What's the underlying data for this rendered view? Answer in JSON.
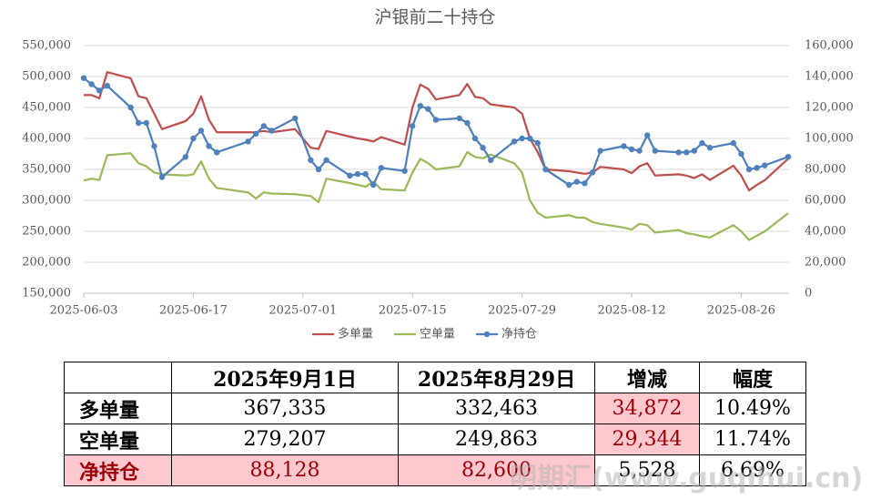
{
  "chart_data": {
    "type": "line",
    "title": "沪银前二十持仓",
    "x": [
      "2025-06-03",
      "2025-06-04",
      "2025-06-05",
      "2025-06-06",
      "2025-06-09",
      "2025-06-10",
      "2025-06-11",
      "2025-06-12",
      "2025-06-13",
      "2025-06-16",
      "2025-06-17",
      "2025-06-18",
      "2025-06-19",
      "2025-06-20",
      "2025-06-24",
      "2025-06-25",
      "2025-06-26",
      "2025-06-27",
      "2025-06-30",
      "2025-07-02",
      "2025-07-03",
      "2025-07-04",
      "2025-07-07",
      "2025-07-08",
      "2025-07-09",
      "2025-07-10",
      "2025-07-11",
      "2025-07-14",
      "2025-07-15",
      "2025-07-16",
      "2025-07-17",
      "2025-07-18",
      "2025-07-21",
      "2025-07-22",
      "2025-07-23",
      "2025-07-24",
      "2025-07-25",
      "2025-07-28",
      "2025-07-29",
      "2025-07-30",
      "2025-07-31",
      "2025-08-01",
      "2025-08-04",
      "2025-08-05",
      "2025-08-06",
      "2025-08-07",
      "2025-08-08",
      "2025-08-11",
      "2025-08-12",
      "2025-08-13",
      "2025-08-14",
      "2025-08-15",
      "2025-08-18",
      "2025-08-19",
      "2025-08-20",
      "2025-08-21",
      "2025-08-22",
      "2025-08-25",
      "2025-08-26",
      "2025-08-27",
      "2025-08-28",
      "2025-08-29",
      "2025-09-01"
    ],
    "series": [
      {
        "name": "多单量",
        "color": "#c0504d",
        "values": [
          470000,
          470000,
          465000,
          507000,
          497000,
          468000,
          465000,
          440000,
          415000,
          428000,
          440000,
          468000,
          430000,
          410000,
          410000,
          410000,
          412000,
          410000,
          415000,
          385000,
          383000,
          412000,
          403000,
          400000,
          398000,
          395000,
          402000,
          390000,
          450000,
          487000,
          480000,
          463000,
          470000,
          488000,
          467000,
          465000,
          455000,
          450000,
          440000,
          400000,
          378000,
          350000,
          347000,
          345000,
          343000,
          345000,
          354000,
          350000,
          344000,
          355000,
          360000,
          340000,
          342000,
          340000,
          336000,
          342000,
          333000,
          356000,
          340000,
          316000,
          325000,
          332463,
          367335
        ]
      },
      {
        "name": "空单量",
        "color": "#9bbb59",
        "values": [
          332000,
          335000,
          333000,
          373000,
          376000,
          360000,
          355000,
          345000,
          342000,
          340000,
          342000,
          363000,
          335000,
          320000,
          313000,
          303000,
          313000,
          311000,
          310000,
          307000,
          297000,
          335000,
          328000,
          325000,
          322000,
          330000,
          318000,
          316000,
          345000,
          367000,
          360000,
          350000,
          355000,
          378000,
          370000,
          368000,
          374000,
          360000,
          345000,
          300000,
          280000,
          272000,
          276000,
          272000,
          272000,
          265000,
          262000,
          256000,
          253000,
          262000,
          260000,
          248000,
          252000,
          247000,
          245000,
          242000,
          240000,
          260000,
          250000,
          236000,
          243000,
          249863,
          279207
        ]
      },
      {
        "name": "净持仓",
        "color": "#4f81bd",
        "axis": "y2",
        "marker": true,
        "values": [
          139000,
          135000,
          131000,
          134000,
          120000,
          110000,
          110000,
          95000,
          75000,
          88000,
          100000,
          105000,
          95000,
          91000,
          98000,
          103000,
          108000,
          105000,
          113000,
          86000,
          80000,
          86000,
          76000,
          77000,
          77000,
          70000,
          81000,
          79000,
          108000,
          121000,
          119000,
          112000,
          113000,
          110000,
          100000,
          94000,
          86000,
          98000,
          100000,
          100000,
          97000,
          80000,
          70000,
          72000,
          71000,
          78000,
          92000,
          95000,
          93000,
          92000,
          102000,
          92000,
          91000,
          91000,
          92000,
          97000,
          94000,
          97000,
          90000,
          80000,
          81000,
          82600,
          88128
        ]
      }
    ],
    "xlim": [
      "2025-06-03",
      "2025-09-01"
    ],
    "xticks": [
      "2025-06-03",
      "2025-06-17",
      "2025-07-01",
      "2025-07-15",
      "2025-07-29",
      "2025-08-12",
      "2025-08-26"
    ],
    "ylim": [
      150000,
      550000
    ],
    "yticks": [
      {
        "value": 150000,
        "label": "150,000"
      },
      {
        "value": 200000,
        "label": "200,000"
      },
      {
        "value": 250000,
        "label": "250,000"
      },
      {
        "value": 300000,
        "label": "300,000"
      },
      {
        "value": 350000,
        "label": "350,000"
      },
      {
        "value": 400000,
        "label": "400,000"
      },
      {
        "value": 450000,
        "label": "450,000"
      },
      {
        "value": 500000,
        "label": "500,000"
      },
      {
        "value": 550000,
        "label": "550,000"
      }
    ],
    "y2lim": [
      0,
      160000
    ],
    "y2ticks": [
      0,
      {
        "value": 20000,
        "label": "20,000"
      },
      {
        "value": 40000,
        "label": "40,000"
      },
      {
        "value": 60000,
        "label": "60,000"
      },
      {
        "value": 80000,
        "label": "80,000"
      },
      {
        "value": 100000,
        "label": "100,000"
      },
      {
        "value": 120000,
        "label": "120,000"
      },
      {
        "value": 140000,
        "label": "140,000"
      },
      {
        "value": 160000,
        "label": "160,000"
      }
    ],
    "grid": true,
    "legend": "bottom"
  },
  "table": {
    "header": [
      "2025年9月1日",
      "2025年8月29日",
      "增减",
      "幅度"
    ],
    "rows": [
      [
        "多单量",
        "367,335",
        "332,463",
        "34,872",
        "10.49%"
      ],
      [
        "空单量",
        "279,207",
        "249,863",
        "29,344",
        "11.74%"
      ],
      [
        "净持仓",
        "88,128",
        "82,600",
        "5,528",
        "6.69%"
      ]
    ]
  },
  "watermark": "明期汇(www.guqihui.cn)"
}
